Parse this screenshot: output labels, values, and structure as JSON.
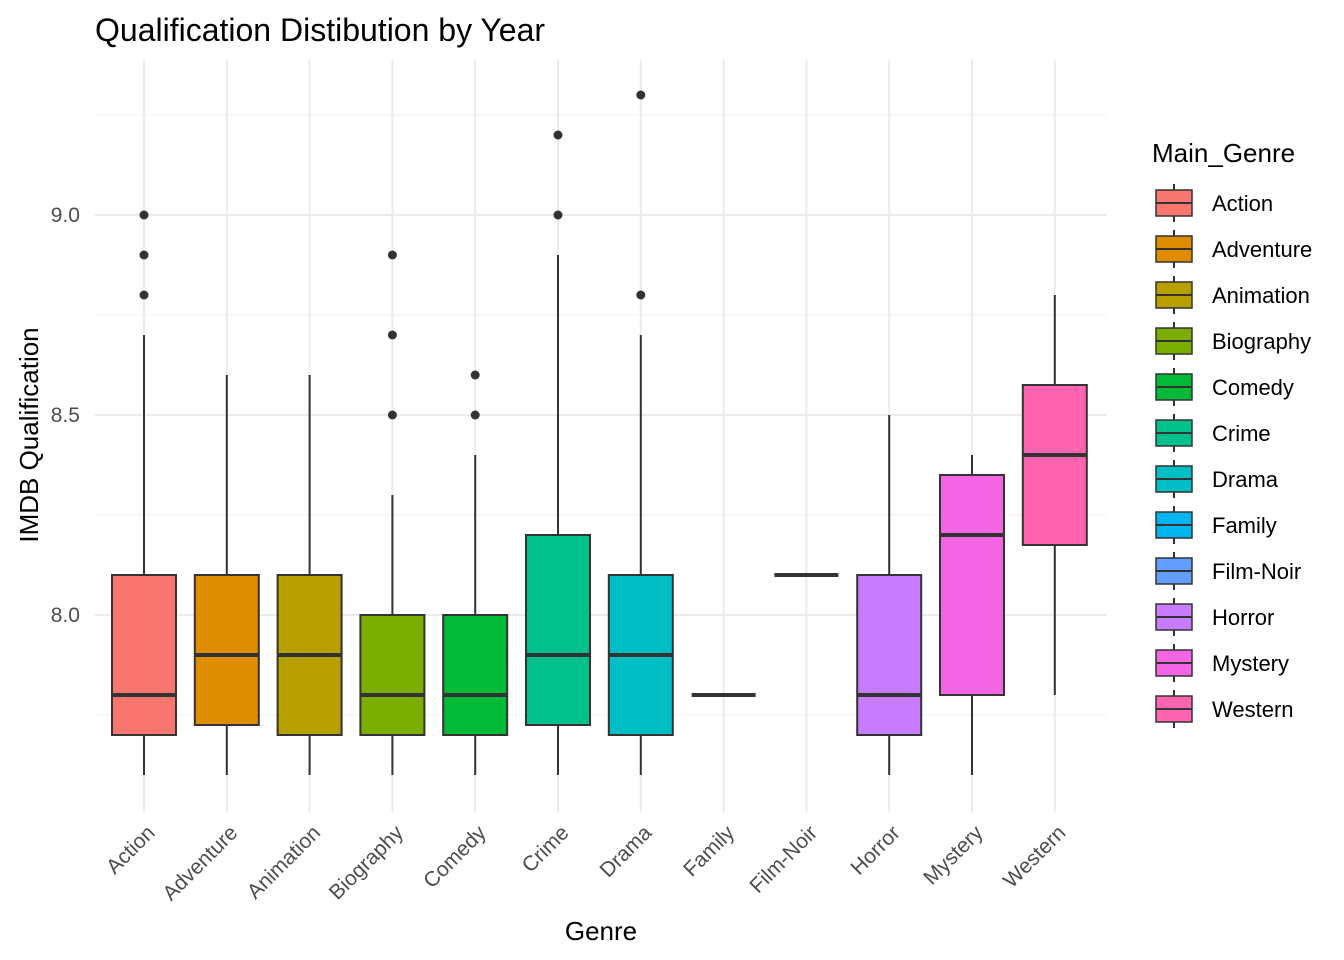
{
  "chart_data": {
    "type": "boxplot",
    "title": "Qualification Distibution by Year",
    "xlabel": "Genre",
    "ylabel": "IMDB Qualification",
    "ylim": [
      7.55,
      9.35
    ],
    "y_ticks": [
      "8.0",
      "8.5",
      "9.0"
    ],
    "y_tick_values": [
      8.0,
      8.5,
      9.0
    ],
    "grid": true,
    "legend": {
      "title": "Main_Genre",
      "position": "right"
    },
    "categories": [
      "Action",
      "Adventure",
      "Animation",
      "Biography",
      "Comedy",
      "Crime",
      "Drama",
      "Family",
      "Film-Noir",
      "Horror",
      "Mystery",
      "Western"
    ],
    "series": [
      {
        "name": "Action",
        "color": "#F8766D",
        "whisker_low": 7.6,
        "q1": 7.7,
        "median": 7.8,
        "q3": 8.1,
        "whisker_high": 8.7,
        "outliers": [
          8.8,
          8.9,
          9.0
        ]
      },
      {
        "name": "Adventure",
        "color": "#DE8C00",
        "whisker_low": 7.6,
        "q1": 7.725,
        "median": 7.9,
        "q3": 8.1,
        "whisker_high": 8.6,
        "outliers": []
      },
      {
        "name": "Animation",
        "color": "#B79F00",
        "whisker_low": 7.6,
        "q1": 7.7,
        "median": 7.9,
        "q3": 8.1,
        "whisker_high": 8.6,
        "outliers": []
      },
      {
        "name": "Biography",
        "color": "#7CAE00",
        "whisker_low": 7.6,
        "q1": 7.7,
        "median": 7.8,
        "q3": 8.0,
        "whisker_high": 8.3,
        "outliers": [
          8.5,
          8.7,
          8.9
        ]
      },
      {
        "name": "Comedy",
        "color": "#00BA38",
        "whisker_low": 7.6,
        "q1": 7.7,
        "median": 7.8,
        "q3": 8.0,
        "whisker_high": 8.4,
        "outliers": [
          8.5,
          8.6
        ]
      },
      {
        "name": "Crime",
        "color": "#00C08B",
        "whisker_low": 7.6,
        "q1": 7.725,
        "median": 7.9,
        "q3": 8.2,
        "whisker_high": 8.9,
        "outliers": [
          9.0,
          9.2
        ]
      },
      {
        "name": "Drama",
        "color": "#00BFC4",
        "whisker_low": 7.6,
        "q1": 7.7,
        "median": 7.9,
        "q3": 8.1,
        "whisker_high": 8.7,
        "outliers": [
          8.8,
          9.3
        ]
      },
      {
        "name": "Family",
        "color": "#00B4F0",
        "whisker_low": 7.8,
        "q1": 7.8,
        "median": 7.8,
        "q3": 7.8,
        "whisker_high": 7.8,
        "outliers": []
      },
      {
        "name": "Film-Noir",
        "color": "#619CFF",
        "whisker_low": 8.1,
        "q1": 8.1,
        "median": 8.1,
        "q3": 8.1,
        "whisker_high": 8.1,
        "outliers": []
      },
      {
        "name": "Horror",
        "color": "#C77CFF",
        "whisker_low": 7.6,
        "q1": 7.7,
        "median": 7.8,
        "q3": 8.1,
        "whisker_high": 8.5,
        "outliers": []
      },
      {
        "name": "Mystery",
        "color": "#F564E3",
        "whisker_low": 7.6,
        "q1": 7.8,
        "median": 8.2,
        "q3": 8.35,
        "whisker_high": 8.4,
        "outliers": []
      },
      {
        "name": "Western",
        "color": "#FF64B0",
        "whisker_low": 7.8,
        "q1": 8.175,
        "median": 8.4,
        "q3": 8.575,
        "whisker_high": 8.8,
        "outliers": []
      }
    ]
  }
}
